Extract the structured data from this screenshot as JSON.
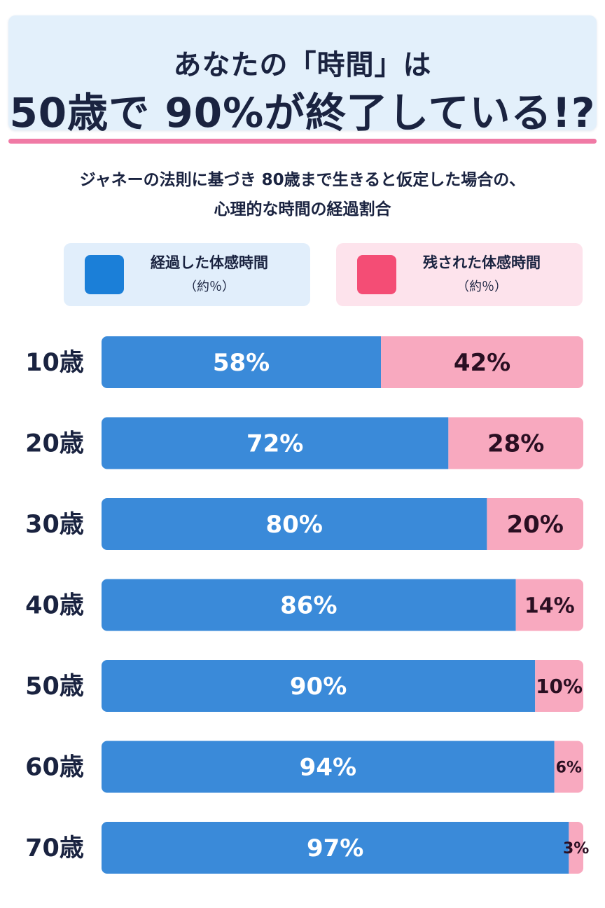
{
  "title": {
    "line1": "あなたの「時間」は",
    "line2": "50歳で 90%が終了している!?"
  },
  "subtitle": {
    "line1": "ジャネーの法則に基づき 80歳まで生きると仮定した場合の、",
    "line2": "心理的な時間の経過割合"
  },
  "legend": {
    "elapsed": {
      "label": "経過した体感時間",
      "note": "（約％）"
    },
    "remaining": {
      "label": "残された体感時間",
      "note": "（約％）"
    }
  },
  "colors": {
    "elapsed": "#3a8ad9",
    "remaining": "#f8a9bf",
    "elapsed_text": "#ffffff",
    "remaining_text": "#2a0f22",
    "axis_label": "#1a2340"
  },
  "chart_data": {
    "type": "bar",
    "stacked": true,
    "orientation": "horizontal",
    "categories": [
      "10歳",
      "20歳",
      "30歳",
      "40歳",
      "50歳",
      "60歳",
      "70歳"
    ],
    "series": [
      {
        "name": "経過した体感時間",
        "values": [
          58,
          72,
          80,
          86,
          90,
          94,
          97
        ]
      },
      {
        "name": "残された体感時間",
        "values": [
          42,
          28,
          20,
          14,
          10,
          6,
          3
        ]
      }
    ],
    "unit": "%",
    "xlim": [
      0,
      100
    ]
  }
}
